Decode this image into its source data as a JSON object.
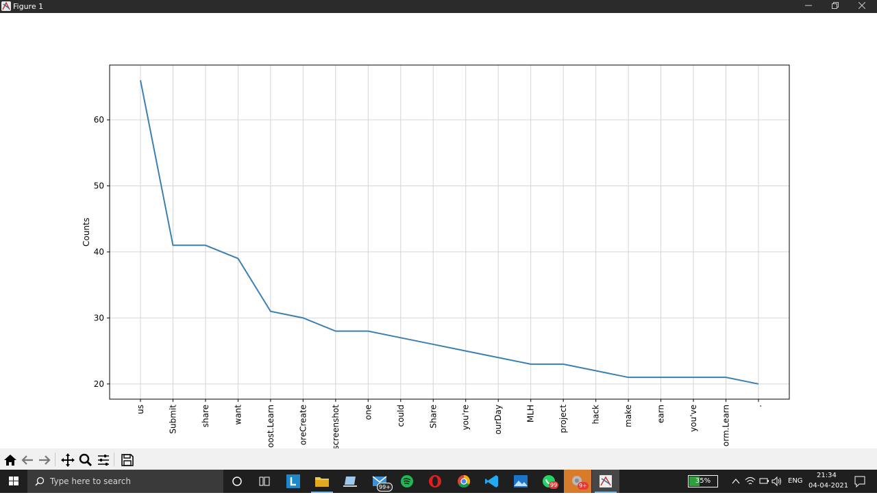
{
  "window": {
    "title": "Figure 1",
    "minimize_icon": "minimize-icon",
    "maximize_icon": "restore-icon",
    "close_icon": "close-icon"
  },
  "chart_data": {
    "type": "line",
    "categories": [
      "us",
      "Submit",
      "share",
      "want",
      "oost.Learn",
      "oreCreate",
      "screenshot",
      "one",
      "could",
      "Share",
      "you're",
      "ourDay",
      "MLH",
      "project",
      "hack",
      "make",
      "earn",
      "you've",
      "orm.Learn",
      "."
    ],
    "values": [
      66,
      41,
      41,
      39,
      31,
      30,
      28,
      28,
      27,
      26,
      25,
      24,
      23,
      23,
      22,
      21,
      21,
      21,
      21,
      20
    ],
    "title": "",
    "xlabel": "",
    "ylabel": "Counts",
    "ylim": [
      17.7,
      68.3
    ],
    "yticks": [
      20,
      30,
      40,
      50,
      60
    ],
    "grid": true,
    "line_color": "#3a7fb0"
  },
  "toolbar": {
    "items": [
      "home-icon",
      "back-arrow-icon",
      "forward-arrow-icon",
      "pan-icon",
      "zoom-icon",
      "configure-subplots-icon",
      "save-icon"
    ]
  },
  "taskbar": {
    "search_placeholder": "Type here to search",
    "mail_badge": "99+",
    "whatsapp_badge": "99",
    "chrome2_badge": "9+",
    "battery": "35%",
    "language": "ENG",
    "time": "21:34",
    "date": "04-04-2021"
  }
}
